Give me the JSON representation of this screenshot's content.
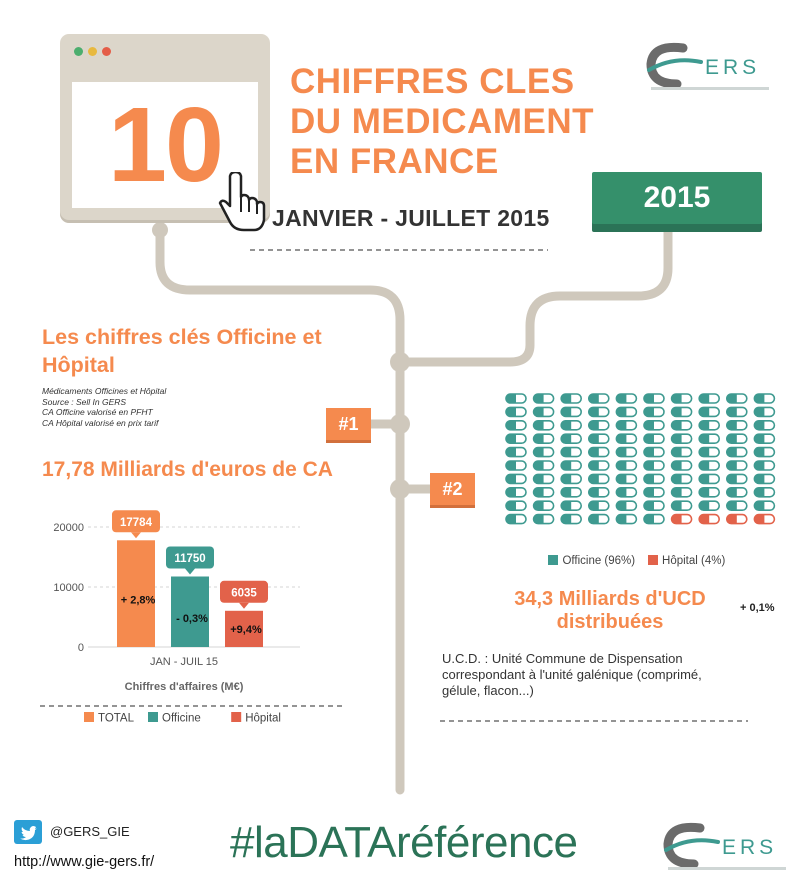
{
  "header": {
    "big_number": "10",
    "title_lines": [
      "CHIFFRES CLES",
      "DU MEDICAMENT",
      "EN FRANCE"
    ],
    "period": "JANVIER - JUILLET  2015",
    "year_badge": "2015",
    "logo_text": "ERS"
  },
  "section1": {
    "heading": "Les chiffres clés Officine et Hôpital",
    "notes": [
      "Médicaments Officines et Hôpital",
      "Source : Sell In GERS",
      "CA Officine valorisé en PFHT",
      "CA Hôpital valorisé en prix tarif"
    ],
    "tag": "#1",
    "headline": "17,78  Milliards d'euros de CA"
  },
  "chart_data": {
    "type": "bar",
    "categories": [
      "JAN - JUIL 15"
    ],
    "series": [
      {
        "name": "TOTAL",
        "value": 17784,
        "label": "17784",
        "growth": "+ 2,8%",
        "color": "#f58a4e"
      },
      {
        "name": "Officine",
        "value": 11750,
        "label": "11750",
        "growth": "- 0,3%",
        "color": "#3e9a90"
      },
      {
        "name": "Hôpital",
        "value": 6035,
        "label": "6035",
        "growth": "+9,4%",
        "color": "#e2624a"
      }
    ],
    "yticks": [
      "20000",
      "10000",
      "0"
    ],
    "ylim": [
      0,
      20000
    ],
    "xlabel": "Chiffres d'affaires (M€)",
    "legend_position": "bottom"
  },
  "section2": {
    "tag": "#2",
    "pill_chart": {
      "columns": 10,
      "rows": 10,
      "hospital_count": 4,
      "officine_color": "#3e9a90",
      "hospital_color": "#e2624a"
    },
    "legend": [
      {
        "label": "Officine (96%)",
        "color": "#3e9a90"
      },
      {
        "label": "Hôpital (4%)",
        "color": "#e2624a"
      }
    ],
    "value_lines": [
      "34,3  Milliards d'UCD",
      "distribuées"
    ],
    "trend": "+ 0,1%",
    "description_lines": [
      "U.C.D. : Unité Commune de Dispensation",
      "correspondant à l'unité galénique (comprimé,",
      "gélule, flacon...)"
    ]
  },
  "footer": {
    "twitter_handle": "@GERS_GIE",
    "url": "http://www.gie-gers.fr/",
    "hashtag": "#laDATAréférence"
  },
  "colors": {
    "orange": "#f58a4e",
    "teal": "#3e9a90",
    "red": "#e2624a",
    "green": "#35906b",
    "line": "#cfc8bc"
  }
}
